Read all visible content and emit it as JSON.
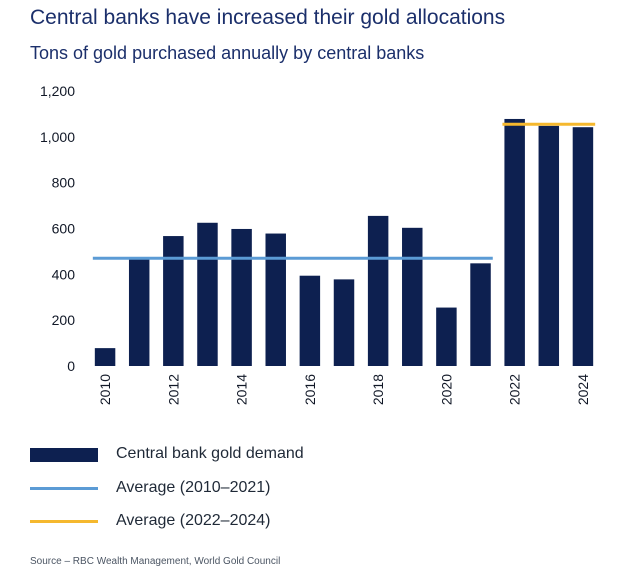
{
  "title": "Central banks have increased their gold allocations",
  "subtitle": "Tons of gold purchased annually by central banks",
  "source": "Source – RBC Wealth Management, World Gold Council",
  "colors": {
    "bar": "#0d2050",
    "avg_2010_2021": "#5b9bd5",
    "avg_2022_2024": "#f5b82e",
    "text": "#1b2f6b"
  },
  "chart_data": {
    "type": "bar",
    "title": "Tons of gold purchased annually by central banks",
    "categories": [
      "2010",
      "2011",
      "2012",
      "2013",
      "2014",
      "2015",
      "2016",
      "2017",
      "2018",
      "2019",
      "2020",
      "2021",
      "2022",
      "2023",
      "2024"
    ],
    "x_tick_labels": [
      "2010",
      "2012",
      "2014",
      "2016",
      "2018",
      "2020",
      "2022",
      "2024"
    ],
    "series": [
      {
        "name": "Central bank gold demand",
        "values": [
          78,
          467,
          567,
          625,
          598,
          578,
          394,
          378,
          655,
          603,
          255,
          448,
          1078,
          1048,
          1042
        ]
      }
    ],
    "reference_lines": [
      {
        "name": "Average (2010–2021)",
        "value": 470,
        "from": "2010",
        "to": "2021"
      },
      {
        "name": "Average (2022–2024)",
        "value": 1055,
        "from": "2022",
        "to": "2024"
      }
    ],
    "y_ticks": [
      0,
      200,
      400,
      600,
      800,
      1000,
      1200
    ],
    "y_tick_labels": [
      "0",
      "200",
      "400",
      "600",
      "800",
      "1,000",
      "1,200"
    ],
    "ylim": [
      0,
      1200
    ],
    "grid": false,
    "legend_position": "bottom"
  },
  "legend": [
    {
      "label": "Central bank gold demand",
      "kind": "bar",
      "color": "#0d2050"
    },
    {
      "label": "Average (2010–2021)",
      "kind": "line",
      "color": "#5b9bd5"
    },
    {
      "label": "Average (2022–2024)",
      "kind": "line",
      "color": "#f5b82e"
    }
  ]
}
